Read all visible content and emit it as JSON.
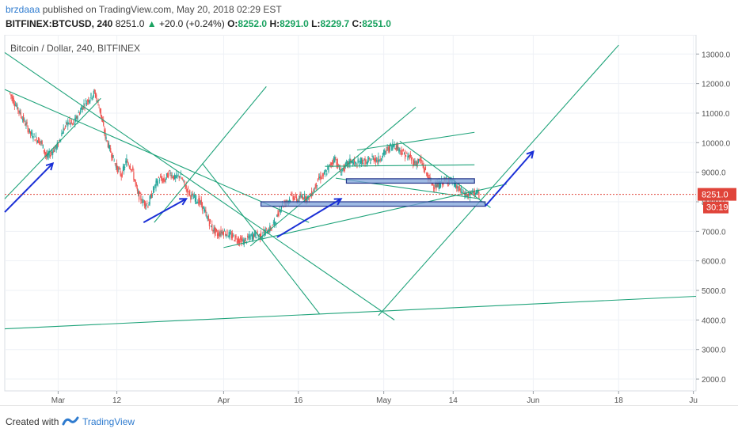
{
  "header": {
    "author": "brzdaaa",
    "published_text": "published on TradingView.com, May 20, 2018 02:29 EST",
    "symbol": "BITFINEX:BTCUSD, 240",
    "last": "8251.0",
    "change_arrow": "▲",
    "change": "+20.0 (+0.24%)",
    "o_label": "O:",
    "o": "8252.0",
    "h_label": "H:",
    "h": "8291.0",
    "l_label": "L:",
    "l": "8229.7",
    "c_label": "C:",
    "c": "8251.0"
  },
  "footer": {
    "created_with": "Created with",
    "brand": "TradingView"
  },
  "colors": {
    "up": "#26a69a",
    "down": "#ef5350",
    "trendline": "#1fa37a",
    "arrow": "#1a2fd6",
    "zone_fill": "#7fa3d9",
    "zone_border": "#24368a",
    "price_line": "#e0443a",
    "price_label_bg": "#e0443a",
    "grid": "#eef1f6"
  },
  "chart_data": {
    "type": "candlestick",
    "title": "Bitcoin / Dollar, 240, BITFINEX",
    "y_ticks": [
      "13000.0",
      "12000.0",
      "11000.0",
      "10000.0",
      "9000.0",
      "8000.0",
      "7000.0",
      "6000.0",
      "5000.0",
      "4000.0",
      "3000.0",
      "2000.0"
    ],
    "y_tick_values": [
      13000,
      12000,
      11000,
      10000,
      9000,
      8000,
      7000,
      6000,
      5000,
      4000,
      3000,
      2000
    ],
    "ylim": [
      1600,
      13650
    ],
    "x_ticks": [
      "Mar",
      "12",
      "Apr",
      "16",
      "May",
      "14",
      "Jun",
      "18",
      "Ju"
    ],
    "x_tick_days": [
      28,
      39,
      59,
      73,
      89,
      102,
      117,
      133,
      147
    ],
    "xlim_days": [
      18,
      147.5
    ],
    "current_price_label": "8251.0",
    "countdown_label": "30:19",
    "current_price": 8251,
    "price_path": [
      [
        19,
        11700
      ],
      [
        21,
        11000
      ],
      [
        23,
        10300
      ],
      [
        25,
        10000
      ],
      [
        26,
        9500
      ],
      [
        28,
        9900
      ],
      [
        29,
        10400
      ],
      [
        30,
        10700
      ],
      [
        31,
        10600
      ],
      [
        32,
        11000
      ],
      [
        33,
        11300
      ],
      [
        34,
        11500
      ],
      [
        35,
        11700
      ],
      [
        36,
        11100
      ],
      [
        37,
        10200
      ],
      [
        38,
        9700
      ],
      [
        39,
        9200
      ],
      [
        40,
        8900
      ],
      [
        41,
        9400
      ],
      [
        42,
        9100
      ],
      [
        43,
        8300
      ],
      [
        44,
        8000
      ],
      [
        45,
        7900
      ],
      [
        46,
        8400
      ],
      [
        47,
        8800
      ],
      [
        48,
        8700
      ],
      [
        49,
        9000
      ],
      [
        50,
        8800
      ],
      [
        51,
        8900
      ],
      [
        52,
        8500
      ],
      [
        53,
        8200
      ],
      [
        54,
        8100
      ],
      [
        55,
        7900
      ],
      [
        56,
        7500
      ],
      [
        57,
        7100
      ],
      [
        58,
        6900
      ],
      [
        59,
        7000
      ],
      [
        60,
        6900
      ],
      [
        61,
        6800
      ],
      [
        62,
        6700
      ],
      [
        63,
        6650
      ],
      [
        64,
        6800
      ],
      [
        65,
        6900
      ],
      [
        66,
        6850
      ],
      [
        67,
        7000
      ],
      [
        68,
        7100
      ],
      [
        69,
        7400
      ],
      [
        70,
        7900
      ],
      [
        71,
        8000
      ],
      [
        72,
        8200
      ],
      [
        73,
        8050
      ],
      [
        74,
        8200
      ],
      [
        75,
        8100
      ],
      [
        76,
        8400
      ],
      [
        77,
        8800
      ],
      [
        78,
        8900
      ],
      [
        79,
        9200
      ],
      [
        80,
        9500
      ],
      [
        81,
        9000
      ],
      [
        82,
        9200
      ],
      [
        83,
        9400
      ],
      [
        84,
        9250
      ],
      [
        85,
        9400
      ],
      [
        86,
        9300
      ],
      [
        87,
        9500
      ],
      [
        88,
        9400
      ],
      [
        89,
        9600
      ],
      [
        90,
        9800
      ],
      [
        91,
        9950
      ],
      [
        92,
        9800
      ],
      [
        93,
        9600
      ],
      [
        94,
        9500
      ],
      [
        95,
        9300
      ],
      [
        96,
        9400
      ],
      [
        97,
        9000
      ],
      [
        98,
        8650
      ],
      [
        99,
        8500
      ],
      [
        100,
        8650
      ],
      [
        101,
        8750
      ],
      [
        102,
        8700
      ],
      [
        103,
        8450
      ],
      [
        104,
        8300
      ],
      [
        105,
        8200
      ],
      [
        106,
        8350
      ],
      [
        107,
        8251
      ]
    ],
    "trendlines": [
      [
        [
          18,
          13050
        ],
        [
          91,
          4000
        ]
      ],
      [
        [
          18,
          11800
        ],
        [
          75,
          7300
        ]
      ],
      [
        [
          18,
          8100
        ],
        [
          36,
          11500
        ]
      ],
      [
        [
          46,
          7300
        ],
        [
          67,
          11900
        ]
      ],
      [
        [
          59,
          6450
        ],
        [
          112,
          8600
        ]
      ],
      [
        [
          64,
          6500
        ],
        [
          95,
          11200
        ]
      ],
      [
        [
          84,
          9750
        ],
        [
          106,
          10350
        ]
      ],
      [
        [
          78,
          9200
        ],
        [
          106,
          9250
        ]
      ],
      [
        [
          80,
          8800
        ],
        [
          107,
          8100
        ]
      ],
      [
        [
          92,
          10050
        ],
        [
          109,
          7800
        ]
      ],
      [
        [
          55,
          9300
        ],
        [
          77,
          4200
        ]
      ],
      [
        [
          88,
          4150
        ],
        [
          133,
          13300
        ]
      ],
      [
        [
          18,
          3700
        ],
        [
          147.5,
          4800
        ]
      ]
    ],
    "zones": [
      {
        "x": [
          82,
          106
        ],
        "y": [
          8630,
          8780
        ]
      },
      {
        "x": [
          66,
          108
        ],
        "y": [
          7850,
          8000
        ]
      }
    ],
    "arrows": [
      [
        [
          18,
          7650
        ],
        [
          27,
          9300
        ]
      ],
      [
        [
          44,
          7300
        ],
        [
          52,
          8100
        ]
      ],
      [
        [
          69,
          6800
        ],
        [
          81,
          8100
        ]
      ],
      [
        [
          108,
          7850
        ],
        [
          117,
          9700
        ]
      ]
    ]
  }
}
